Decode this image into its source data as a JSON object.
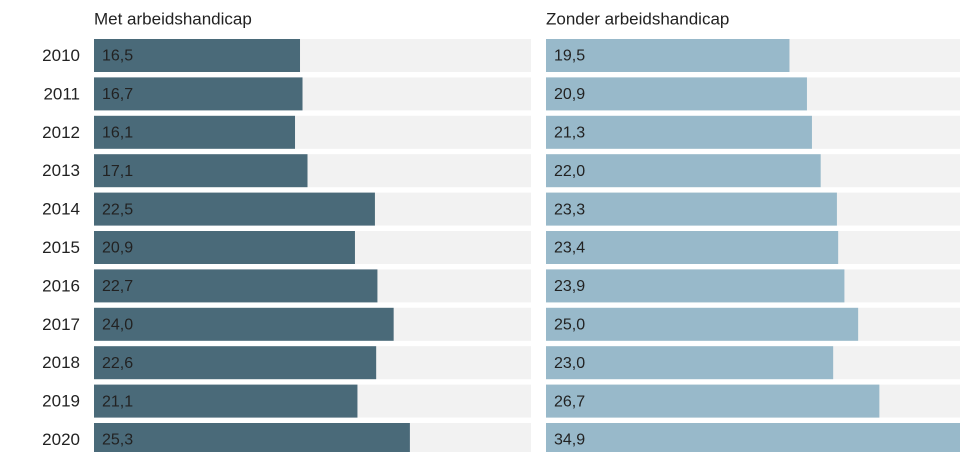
{
  "chart_data": {
    "type": "bar",
    "categories": [
      "2010",
      "2011",
      "2012",
      "2013",
      "2014",
      "2015",
      "2016",
      "2017",
      "2018",
      "2019",
      "2020"
    ],
    "xlim": [
      0,
      35
    ],
    "series": [
      {
        "name": "Met arbeidshandicap",
        "color": "#4a6a79",
        "label_color": "#ffffff",
        "values": [
          16.5,
          16.7,
          16.1,
          17.1,
          22.5,
          20.9,
          22.7,
          24.0,
          22.6,
          21.1,
          25.3
        ],
        "value_labels": [
          "16,5",
          "16,7",
          "16,1",
          "17,1",
          "22,5",
          "20,9",
          "22,7",
          "24,0",
          "22,6",
          "21,1",
          "25,3"
        ]
      },
      {
        "name": "Zonder arbeidshandicap",
        "color": "#98b9ca",
        "label_color": "#333333",
        "values": [
          19.5,
          20.9,
          21.3,
          22.0,
          23.3,
          23.4,
          23.9,
          25.0,
          23.0,
          26.7,
          34.9
        ],
        "value_labels": [
          "19,5",
          "20,9",
          "21,3",
          "22,0",
          "23,3",
          "23,4",
          "23,9",
          "25,0",
          "23,0",
          "26,7",
          "34,9"
        ]
      }
    ]
  }
}
